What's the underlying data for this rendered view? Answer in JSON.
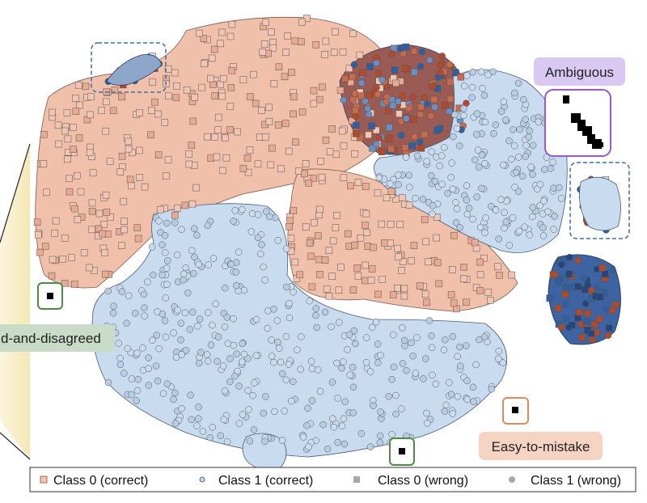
{
  "chart_data": {
    "type": "scatter",
    "title": "",
    "xlabel": "",
    "ylabel": "",
    "grid": false,
    "legend_position": "bottom",
    "legend": [
      {
        "label": "Class 0 (correct)",
        "marker": "square",
        "color": "#f2c4b1"
      },
      {
        "label": "Class 1 (correct)",
        "marker": "circle",
        "color": "#c8dbef"
      },
      {
        "label": "Class 0 (wrong)",
        "marker": "square",
        "color": "#a8a8a8"
      },
      {
        "label": "Class 1 (wrong)",
        "marker": "circle",
        "color": "#a8a8a8"
      }
    ],
    "annotations": [
      {
        "label": "Ambiguous",
        "color": "#d9c9f2",
        "border": "#9a57d6"
      },
      {
        "label": "Easy-to-mistake",
        "color": "#f6d3c3",
        "border": "#e08a5a"
      },
      {
        "label": "d-and-disagreed",
        "color": "#c9dcc7",
        "border": "#4d8a46"
      }
    ],
    "colors": {
      "class0_fill": "#f2c4b1",
      "class0_dark": "#b04a2c",
      "class1_fill": "#c8dbef",
      "class1_dark": "#2f5f9e",
      "edge": "#555555",
      "box_blue": "#3f6eaa",
      "box_green": "#4d8a46"
    }
  }
}
